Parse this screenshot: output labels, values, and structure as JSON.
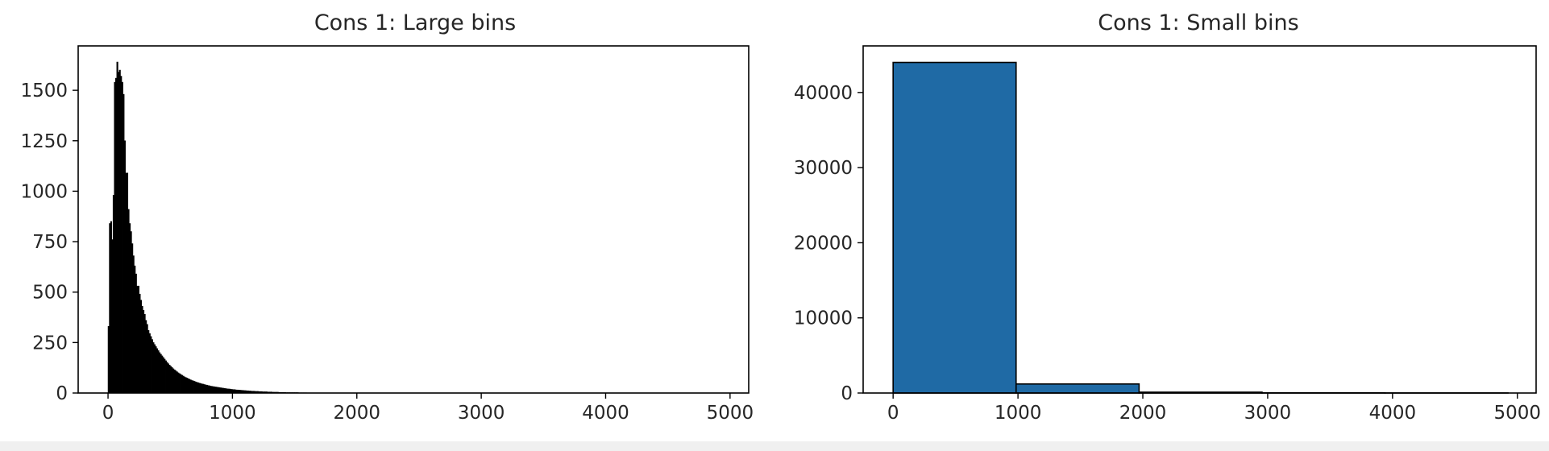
{
  "chart_data": [
    {
      "type": "bar",
      "title": "Cons 1: Large bins",
      "xlabel": "",
      "ylabel": "",
      "xlim": [
        -240,
        5150
      ],
      "ylim": [
        0,
        1720
      ],
      "x_ticks": [
        0,
        1000,
        2000,
        3000,
        4000,
        5000
      ],
      "y_ticks": [
        0,
        250,
        500,
        750,
        1000,
        1250,
        1500
      ],
      "bar_color": "#000000",
      "edge_color": "#000000",
      "grid": false,
      "bin_width": 10,
      "bin_start": 0,
      "values": [
        330,
        840,
        850,
        760,
        980,
        1540,
        1560,
        1640,
        1590,
        1600,
        1570,
        1540,
        1480,
        1250,
        1090,
        1090,
        910,
        840,
        800,
        740,
        680,
        630,
        590,
        530,
        530,
        490,
        460,
        430,
        410,
        390,
        360,
        340,
        310,
        295,
        280,
        265,
        250,
        240,
        230,
        220,
        210,
        200,
        192,
        184,
        176,
        168,
        160,
        152,
        145,
        138,
        132,
        126,
        120,
        115,
        110,
        105,
        100,
        96,
        92,
        88,
        84,
        80,
        77,
        74,
        71,
        68,
        65,
        62,
        60,
        58,
        55,
        53,
        51,
        49,
        47,
        45,
        44,
        42,
        40,
        39,
        37,
        36,
        34,
        33,
        32,
        31,
        30,
        29,
        28,
        27,
        26,
        25,
        24,
        23,
        22,
        21,
        20,
        20,
        19,
        18,
        17,
        17,
        16,
        15,
        15,
        14,
        14,
        13,
        13,
        12,
        12,
        11,
        11,
        10,
        10,
        9,
        9,
        9,
        8,
        8,
        8,
        7,
        7,
        7,
        6,
        6,
        6,
        6,
        5,
        5,
        5,
        5,
        4,
        4,
        4,
        4,
        4,
        3,
        3,
        3,
        3,
        3,
        3,
        2,
        2,
        2,
        2,
        2,
        2,
        2,
        2,
        2,
        2,
        1,
        1,
        1,
        1,
        1,
        1,
        1
      ]
    },
    {
      "type": "bar",
      "title": "Cons 1: Small bins",
      "xlabel": "",
      "ylabel": "",
      "xlim": [
        -240,
        5150
      ],
      "ylim": [
        0,
        46200
      ],
      "x_ticks": [
        0,
        1000,
        2000,
        3000,
        4000,
        5000
      ],
      "y_ticks": [
        0,
        10000,
        20000,
        30000,
        40000
      ],
      "bar_color": "#1f6aa5",
      "edge_color": "#000000",
      "grid": false,
      "bins": [
        {
          "start": 0,
          "end": 985,
          "value": 44000
        },
        {
          "start": 985,
          "end": 1970,
          "value": 1200
        },
        {
          "start": 1970,
          "end": 2955,
          "value": 110
        },
        {
          "start": 2955,
          "end": 3940,
          "value": 30
        },
        {
          "start": 3940,
          "end": 4925,
          "value": 10
        }
      ]
    }
  ]
}
